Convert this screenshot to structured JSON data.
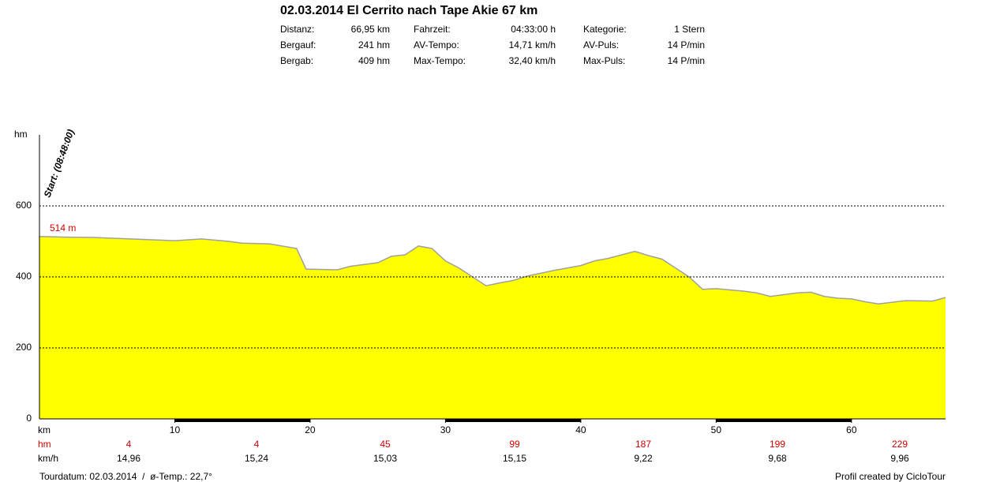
{
  "header": {
    "title": "02.03.2014 El Cerrito nach Tape Akie 67 km",
    "stats": [
      [
        {
          "label": "Distanz:",
          "value": "66,95 km"
        },
        {
          "label": "Fahrzeit:",
          "value": "04:33:00 h"
        },
        {
          "label": "Kategorie:",
          "value": "1 Stern"
        }
      ],
      [
        {
          "label": "Bergauf:",
          "value": "241 hm"
        },
        {
          "label": "AV-Tempo:",
          "value": "14,71 km/h"
        },
        {
          "label": "AV-Puls:",
          "value": "14 P/min"
        }
      ],
      [
        {
          "label": "Bergab:",
          "value": "409 hm"
        },
        {
          "label": "Max-Tempo:",
          "value": "32,40 km/h"
        },
        {
          "label": "Max-Puls:",
          "value": "14 P/min"
        }
      ]
    ]
  },
  "chart_data": {
    "type": "area",
    "y_label": "hm",
    "x_label": "km",
    "start_annotation": "Start: (08:48:00)",
    "start_value_label": "514 m",
    "color": "#ffff00",
    "line_color": "#a0a0a0",
    "grid": true,
    "x": [
      0,
      2,
      4,
      6,
      8,
      10,
      12,
      14,
      15,
      17,
      19,
      19.7,
      22,
      23,
      25,
      26,
      27,
      28,
      29,
      30,
      31,
      32,
      33,
      34,
      35,
      36,
      38,
      40,
      41,
      42,
      44,
      45,
      46,
      47,
      48,
      49,
      50,
      52,
      53,
      54,
      56,
      57,
      58,
      59,
      60,
      61,
      62,
      64,
      66,
      66.95
    ],
    "values": [
      514,
      512,
      511,
      508,
      505,
      502,
      507,
      500,
      495,
      493,
      480,
      422,
      420,
      430,
      440,
      458,
      462,
      487,
      480,
      445,
      425,
      400,
      375,
      383,
      390,
      402,
      418,
      432,
      445,
      452,
      472,
      460,
      450,
      425,
      400,
      365,
      367,
      360,
      355,
      345,
      355,
      357,
      345,
      340,
      338,
      330,
      324,
      333,
      332,
      342
    ],
    "xlim": [
      0,
      66.95
    ],
    "xticks": [
      10,
      20,
      30,
      40,
      50,
      60
    ],
    "ylim": [
      0,
      800
    ],
    "yticks": [
      0,
      200,
      400,
      600
    ]
  },
  "segments": {
    "hm_label": "hm",
    "kmh_label": "km/h",
    "hm": [
      4,
      4,
      45,
      99,
      187,
      199,
      229
    ],
    "kmh": [
      "14,96",
      "15,24",
      "15,03",
      "15,15",
      "9,22",
      "9,68",
      "9,96"
    ]
  },
  "footer": {
    "left": "Tourdatum: 02.03.2014  /  ø-Temp.: 22,7°",
    "right": "Profil created by CicloTour"
  }
}
